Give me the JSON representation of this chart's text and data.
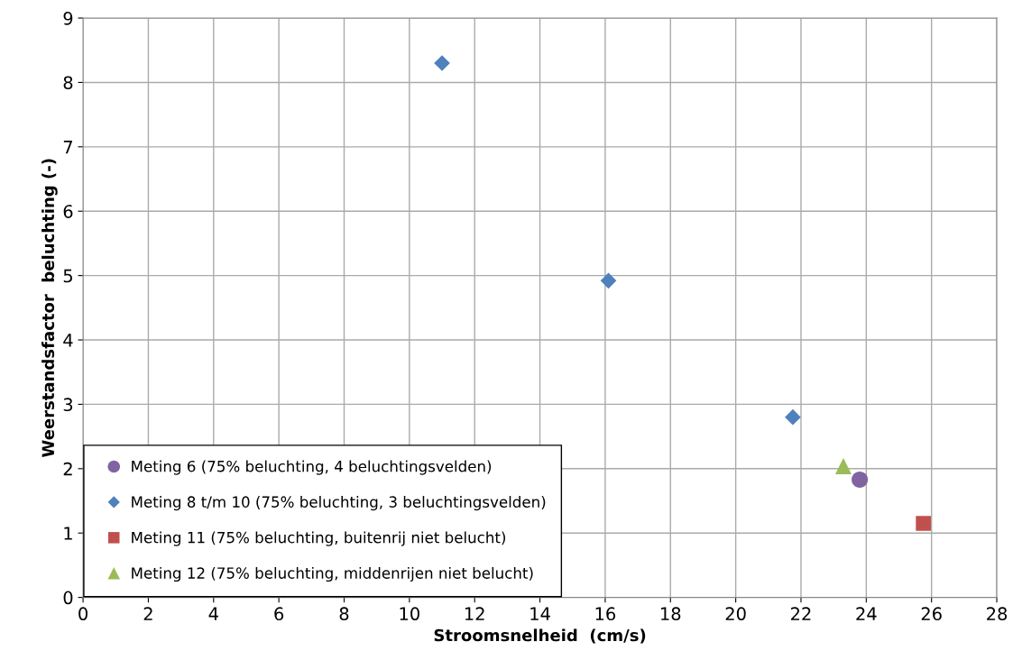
{
  "chart_data": {
    "type": "scatter",
    "xlabel": "Stroomsnelheid  (cm/s)",
    "ylabel": "Weerstandsfactor  beluchting (-)",
    "xlim": [
      0,
      28
    ],
    "xticks": [
      0,
      2,
      4,
      6,
      8,
      10,
      12,
      14,
      16,
      18,
      20,
      22,
      24,
      26,
      28
    ],
    "ylim": [
      0,
      9
    ],
    "yticks": [
      0,
      1,
      2,
      3,
      4,
      5,
      6,
      7,
      8,
      9
    ],
    "grid": true,
    "legend": "bottom left",
    "series": [
      {
        "name": "Meting 6 (75% beluchting, 4 beluchtingsvelden)",
        "color": "#8064a2",
        "marker": "circle",
        "x": [
          23.8
        ],
        "values": [
          1.83
        ]
      },
      {
        "name": "Meting 8 t/m 10 (75% beluchting, 3 beluchtingsvelden)",
        "color": "#4f81bd",
        "marker": "diamond",
        "x": [
          11.0,
          16.1,
          21.75
        ],
        "values": [
          8.3,
          4.92,
          2.8
        ]
      },
      {
        "name": "Meting 11 (75% beluchting, buitenrij niet belucht)",
        "color": "#c0504d",
        "marker": "square",
        "x": [
          25.75
        ],
        "values": [
          1.15
        ]
      },
      {
        "name": "Meting 12 (75% beluchting, middenrijen niet belucht)",
        "color": "#9bbb59",
        "marker": "triangle",
        "x": [
          23.3
        ],
        "values": [
          2.04
        ]
      }
    ]
  }
}
